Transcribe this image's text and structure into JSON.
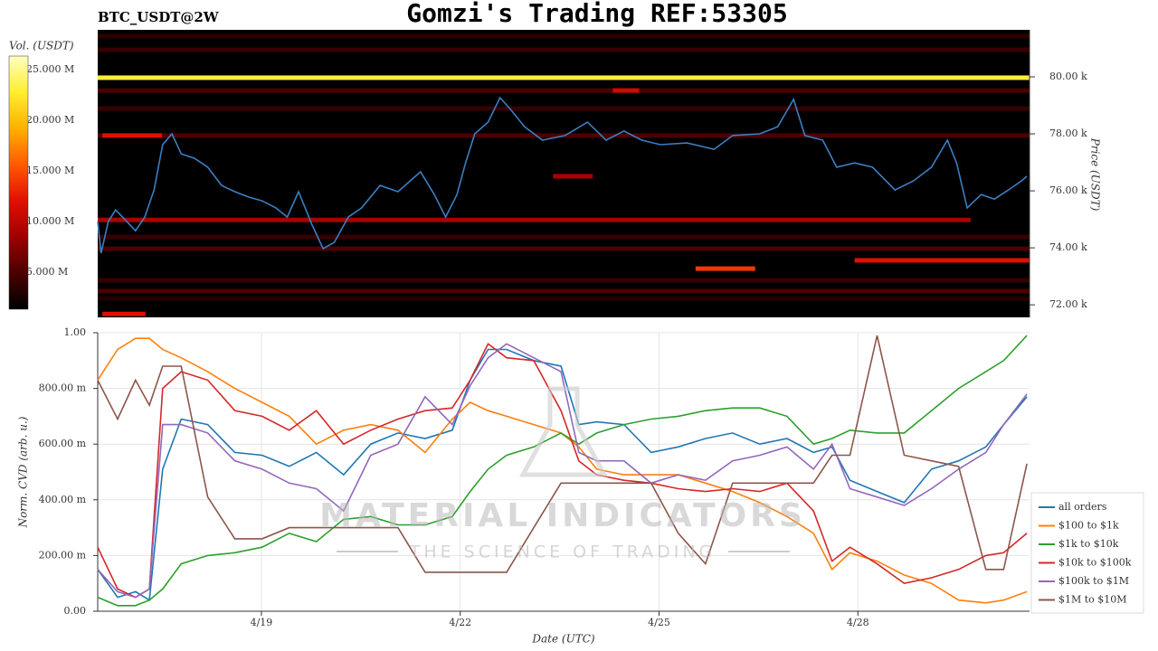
{
  "header": {
    "symbol": "BTC_USDT@2W",
    "title": "Gomzi's Trading REF:53305"
  },
  "watermark": {
    "brand": "MATERIAL INDICATORS",
    "tagline": "THE SCIENCE OF TRADING"
  },
  "chart_data": [
    {
      "type": "heatmap",
      "xlim": [
        16.53,
        30.59
      ],
      "ylim": [
        71560,
        81650
      ],
      "ylabel": "Price (USDT)",
      "yticks": [
        {
          "value": 72000,
          "label": "72.00 k"
        },
        {
          "value": 74000,
          "label": "74.00 k"
        },
        {
          "value": 76000,
          "label": "76.00 k"
        },
        {
          "value": 78000,
          "label": "78.00 k"
        },
        {
          "value": 80000,
          "label": "80.00 k"
        }
      ],
      "colorbar_label": "Vol. (USDT)",
      "clim": [
        1340000,
        26340000
      ],
      "cticks": [
        {
          "value": 5000000,
          "label": "5.000 M"
        },
        {
          "value": 10000000,
          "label": "10.000 M"
        },
        {
          "value": 15000000,
          "label": "15.000 M"
        },
        {
          "value": 20000000,
          "label": "20.000 M"
        },
        {
          "value": 25000000,
          "label": "25.000 M"
        }
      ],
      "colorscale": [
        "#000000",
        "#4a0000",
        "#a00000",
        "#e01000",
        "#ff5a00",
        "#ffb000",
        "#ffee30",
        "#ffffc0"
      ],
      "bands": {
        "price": [
          81430,
          80950,
          79970,
          79520,
          78890,
          77940,
          77940,
          76510,
          79520,
          74980,
          74380,
          73970,
          73560,
          73270,
          72860,
          72480,
          72220,
          71680
        ],
        "start": [
          16.53,
          16.53,
          16.53,
          16.53,
          16.53,
          16.53,
          16.6,
          23.4,
          24.3,
          16.53,
          16.53,
          16.53,
          27.95,
          25.55,
          16.53,
          16.53,
          16.53,
          16.6
        ],
        "end": [
          30.59,
          30.59,
          30.59,
          30.59,
          30.59,
          30.59,
          17.5,
          24.0,
          24.7,
          29.7,
          30.59,
          30.59,
          30.59,
          26.45,
          30.59,
          30.59,
          30.59,
          17.25
        ],
        "volume": [
          3500000,
          4000000,
          23000000,
          5000000,
          4000000,
          5000000,
          12000000,
          9000000,
          11000000,
          9000000,
          4000000,
          5000000,
          12000000,
          14000000,
          4000000,
          5000000,
          3000000,
          12000000
        ]
      },
      "line": {
        "color": "#3b7fc2",
        "x": [
          16.53,
          16.58,
          16.69,
          16.8,
          16.97,
          17.1,
          17.24,
          17.38,
          17.51,
          17.65,
          17.79,
          17.99,
          18.19,
          18.4,
          18.6,
          18.81,
          19.01,
          19.22,
          19.39,
          19.56,
          19.76,
          19.93,
          20.1,
          20.31,
          20.51,
          20.79,
          21.06,
          21.4,
          21.61,
          21.78,
          21.95,
          22.08,
          22.22,
          22.42,
          22.6,
          22.77,
          22.97,
          23.24,
          23.58,
          23.92,
          24.2,
          24.47,
          24.74,
          25.02,
          25.42,
          25.83,
          26.11,
          26.52,
          26.79,
          27.03,
          27.2,
          27.47,
          27.68,
          27.95,
          28.22,
          28.56,
          28.84,
          29.11,
          29.35,
          29.49,
          29.65,
          29.86,
          30.06,
          30.27,
          30.47,
          30.55
        ],
        "values": [
          74920,
          73810,
          74920,
          75330,
          74920,
          74600,
          75080,
          76030,
          77620,
          78000,
          77300,
          77140,
          76830,
          76190,
          75970,
          75780,
          75650,
          75400,
          75080,
          75970,
          74830,
          73970,
          74190,
          75080,
          75400,
          76190,
          75970,
          76670,
          75870,
          75080,
          75870,
          76980,
          78000,
          78410,
          79270,
          78830,
          78250,
          77780,
          77940,
          78410,
          77780,
          78100,
          77780,
          77620,
          77680,
          77460,
          77940,
          78000,
          78250,
          79210,
          77940,
          77780,
          76830,
          76980,
          76830,
          76030,
          76350,
          76830,
          77780,
          76980,
          75400,
          75870,
          75710,
          76030,
          76350,
          76510
        ]
      }
    },
    {
      "type": "line",
      "xlabel": "Date (UTC)",
      "ylabel": "Norm. CVD (arb. u.)",
      "xlim": [
        16.53,
        30.59
      ],
      "ylim": [
        0,
        1
      ],
      "xticks": [
        {
          "value": 19,
          "label": "4/19"
        },
        {
          "value": 22,
          "label": "4/22"
        },
        {
          "value": 25,
          "label": "4/25"
        },
        {
          "value": 28,
          "label": "4/28"
        }
      ],
      "yticks": [
        {
          "value": 0,
          "label": "0.00"
        },
        {
          "value": 0.2,
          "label": "200.00 m"
        },
        {
          "value": 0.4,
          "label": "400.00 m"
        },
        {
          "value": 0.6,
          "label": "600.00 m"
        },
        {
          "value": 0.8,
          "label": "800.00 m"
        },
        {
          "value": 1,
          "label": "1.00"
        }
      ],
      "grid": true,
      "legend": "lower right",
      "x": [
        16.53,
        16.83,
        17.1,
        17.31,
        17.51,
        17.79,
        18.19,
        18.6,
        19.01,
        19.42,
        19.83,
        20.24,
        20.65,
        21.06,
        21.47,
        21.88,
        22.15,
        22.42,
        22.7,
        23.11,
        23.52,
        23.79,
        24.06,
        24.47,
        24.88,
        25.29,
        25.7,
        26.11,
        26.52,
        26.93,
        27.33,
        27.61,
        27.88,
        28.29,
        28.7,
        29.11,
        29.52,
        29.93,
        30.2,
        30.55
      ],
      "series": [
        {
          "name": "all orders",
          "color": "#1f77b4",
          "values": [
            0.15,
            0.05,
            0.07,
            0.04,
            0.51,
            0.69,
            0.67,
            0.57,
            0.56,
            0.52,
            0.57,
            0.49,
            0.6,
            0.64,
            0.62,
            0.65,
            0.83,
            0.94,
            0.94,
            0.9,
            0.88,
            0.67,
            0.68,
            0.67,
            0.57,
            0.59,
            0.62,
            0.64,
            0.6,
            0.62,
            0.57,
            0.59,
            0.47,
            0.43,
            0.39,
            0.51,
            0.54,
            0.59,
            0.67,
            0.77
          ]
        },
        {
          "name": "$100 to $1k",
          "color": "#ff7f0e",
          "values": [
            0.83,
            0.94,
            0.98,
            0.98,
            0.94,
            0.91,
            0.86,
            0.8,
            0.75,
            0.7,
            0.6,
            0.65,
            0.67,
            0.65,
            0.57,
            0.69,
            0.75,
            0.72,
            0.7,
            0.67,
            0.64,
            0.59,
            0.51,
            0.49,
            0.49,
            0.49,
            0.46,
            0.43,
            0.39,
            0.34,
            0.28,
            0.15,
            0.21,
            0.18,
            0.13,
            0.1,
            0.04,
            0.03,
            0.04,
            0.07
          ]
        },
        {
          "name": "$1k to $10k",
          "color": "#2ca02c",
          "values": [
            0.05,
            0.02,
            0.02,
            0.04,
            0.08,
            0.17,
            0.2,
            0.21,
            0.23,
            0.28,
            0.25,
            0.33,
            0.34,
            0.31,
            0.31,
            0.34,
            0.43,
            0.51,
            0.56,
            0.59,
            0.64,
            0.6,
            0.64,
            0.67,
            0.69,
            0.7,
            0.72,
            0.73,
            0.73,
            0.7,
            0.6,
            0.62,
            0.65,
            0.64,
            0.64,
            0.72,
            0.8,
            0.86,
            0.9,
            0.99
          ]
        },
        {
          "name": "$10k to $100k",
          "color": "#d62728",
          "values": [
            0.23,
            0.08,
            0.05,
            0.08,
            0.8,
            0.86,
            0.83,
            0.72,
            0.7,
            0.65,
            0.72,
            0.6,
            0.65,
            0.69,
            0.72,
            0.73,
            0.83,
            0.96,
            0.91,
            0.9,
            0.72,
            0.54,
            0.49,
            0.47,
            0.46,
            0.44,
            0.43,
            0.44,
            0.43,
            0.46,
            0.36,
            0.18,
            0.23,
            0.17,
            0.1,
            0.12,
            0.15,
            0.2,
            0.21,
            0.28
          ]
        },
        {
          "name": "$100k to $1M",
          "color": "#9467bd",
          "values": [
            0.15,
            0.07,
            0.05,
            0.08,
            0.67,
            0.67,
            0.64,
            0.54,
            0.51,
            0.46,
            0.44,
            0.36,
            0.56,
            0.6,
            0.77,
            0.67,
            0.81,
            0.91,
            0.96,
            0.91,
            0.86,
            0.57,
            0.54,
            0.54,
            0.46,
            0.49,
            0.47,
            0.54,
            0.56,
            0.59,
            0.51,
            0.6,
            0.44,
            0.41,
            0.38,
            0.44,
            0.51,
            0.57,
            0.67,
            0.78
          ]
        },
        {
          "name": "$1M to $10M",
          "color": "#8c564b",
          "values": [
            0.83,
            0.69,
            0.83,
            0.74,
            0.88,
            0.88,
            0.41,
            0.26,
            0.26,
            0.3,
            0.3,
            0.3,
            0.3,
            0.3,
            0.14,
            0.14,
            0.14,
            0.14,
            0.14,
            0.3,
            0.46,
            0.46,
            0.46,
            0.46,
            0.46,
            0.28,
            0.17,
            0.46,
            0.46,
            0.46,
            0.46,
            0.56,
            0.56,
            0.99,
            0.56,
            0.54,
            0.52,
            0.15,
            0.15,
            0.53
          ]
        }
      ]
    }
  ]
}
